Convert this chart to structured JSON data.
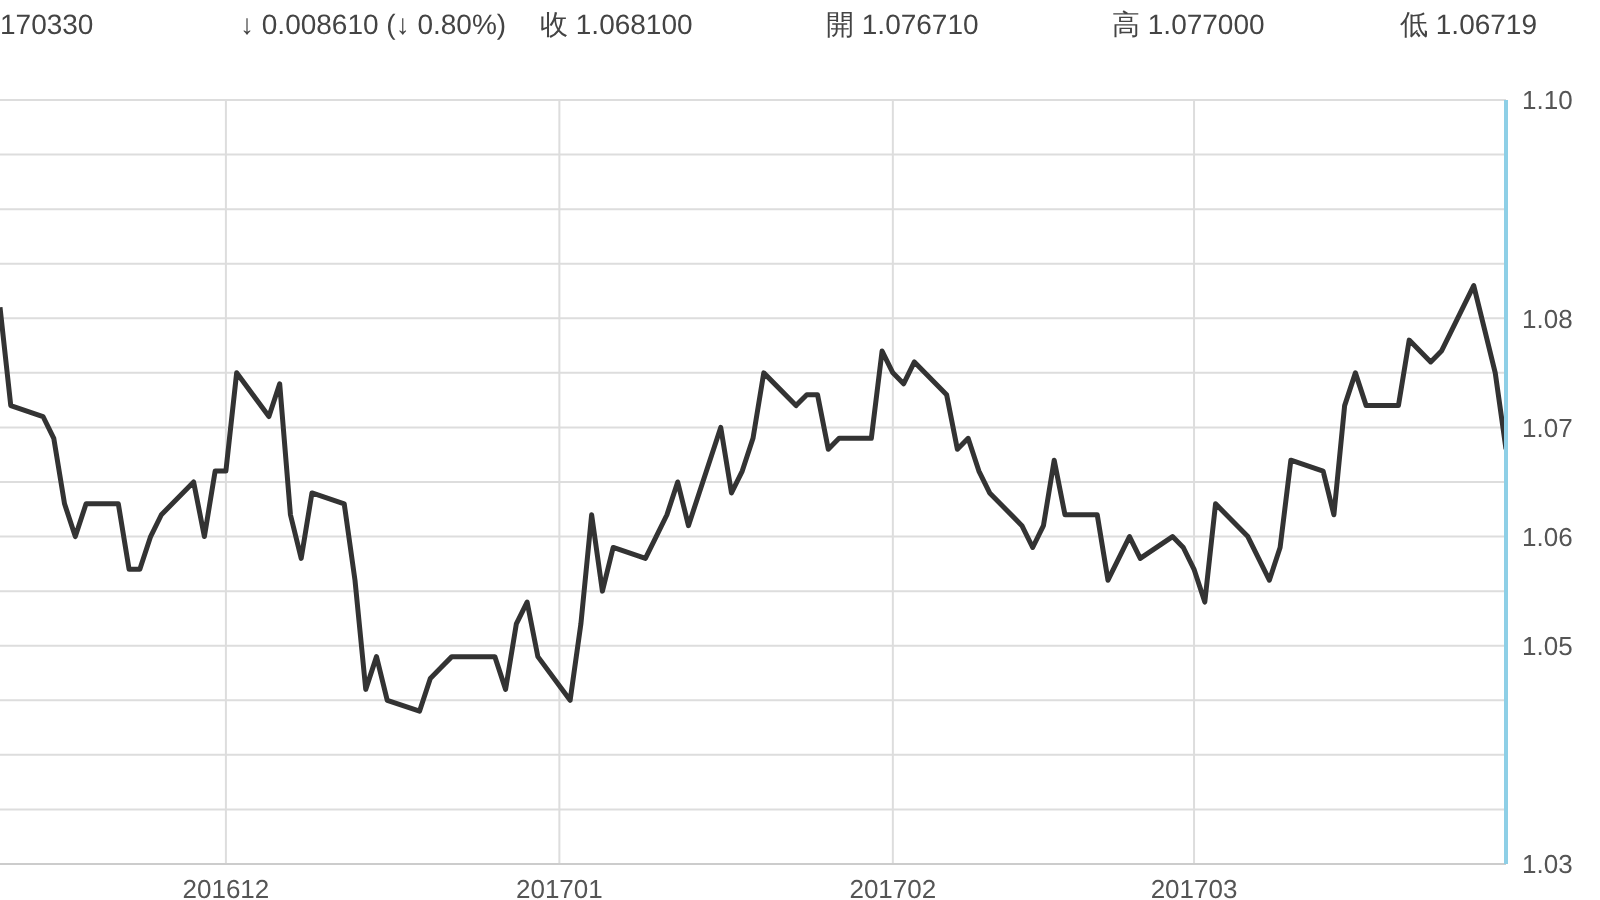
{
  "chart_data": {
    "type": "line",
    "annotations": [
      "170330",
      "↓ 0.008610 (↓ 0.80%)",
      "收 1.068100",
      "開 1.076710",
      "高 1.077000",
      "低 1.06719"
    ],
    "x": [
      "2016-11-10",
      "2016-11-11",
      "2016-11-14",
      "2016-11-15",
      "2016-11-16",
      "2016-11-17",
      "2016-11-18",
      "2016-11-21",
      "2016-11-22",
      "2016-11-23",
      "2016-11-24",
      "2016-11-25",
      "2016-11-28",
      "2016-11-29",
      "2016-11-30",
      "2016-12-01",
      "2016-12-02",
      "2016-12-05",
      "2016-12-06",
      "2016-12-07",
      "2016-12-08",
      "2016-12-09",
      "2016-12-12",
      "2016-12-13",
      "2016-12-14",
      "2016-12-15",
      "2016-12-16",
      "2016-12-19",
      "2016-12-20",
      "2016-12-21",
      "2016-12-22",
      "2016-12-23",
      "2016-12-26",
      "2016-12-27",
      "2016-12-28",
      "2016-12-29",
      "2016-12-30",
      "2017-01-02",
      "2017-01-03",
      "2017-01-04",
      "2017-01-05",
      "2017-01-06",
      "2017-01-09",
      "2017-01-10",
      "2017-01-11",
      "2017-01-12",
      "2017-01-13",
      "2017-01-16",
      "2017-01-17",
      "2017-01-18",
      "2017-01-19",
      "2017-01-20",
      "2017-01-23",
      "2017-01-24",
      "2017-01-25",
      "2017-01-26",
      "2017-01-27",
      "2017-01-30",
      "2017-01-31",
      "2017-02-01",
      "2017-02-02",
      "2017-02-03",
      "2017-02-06",
      "2017-02-07",
      "2017-02-08",
      "2017-02-09",
      "2017-02-10",
      "2017-02-13",
      "2017-02-14",
      "2017-02-15",
      "2017-02-16",
      "2017-02-17",
      "2017-02-20",
      "2017-02-21",
      "2017-02-22",
      "2017-02-23",
      "2017-02-24",
      "2017-02-27",
      "2017-02-28",
      "2017-03-01",
      "2017-03-02",
      "2017-03-03",
      "2017-03-06",
      "2017-03-07",
      "2017-03-08",
      "2017-03-09",
      "2017-03-10",
      "2017-03-13",
      "2017-03-14",
      "2017-03-15",
      "2017-03-16",
      "2017-03-17",
      "2017-03-20",
      "2017-03-21",
      "2017-03-22",
      "2017-03-23",
      "2017-03-24",
      "2017-03-27",
      "2017-03-28",
      "2017-03-29",
      "2017-03-30"
    ],
    "series": [
      {
        "color": "#333333",
        "values": [
          1.081,
          1.072,
          1.071,
          1.069,
          1.063,
          1.06,
          1.063,
          1.063,
          1.057,
          1.057,
          1.06,
          1.062,
          1.065,
          1.06,
          1.066,
          1.066,
          1.075,
          1.071,
          1.074,
          1.062,
          1.058,
          1.064,
          1.063,
          1.056,
          1.046,
          1.049,
          1.045,
          1.044,
          1.047,
          1.048,
          1.049,
          1.049,
          1.049,
          1.046,
          1.052,
          1.054,
          1.049,
          1.045,
          1.052,
          1.062,
          1.055,
          1.059,
          1.058,
          1.06,
          1.062,
          1.065,
          1.061,
          1.07,
          1.064,
          1.066,
          1.069,
          1.075,
          1.072,
          1.073,
          1.073,
          1.068,
          1.069,
          1.069,
          1.077,
          1.075,
          1.074,
          1.076,
          1.073,
          1.068,
          1.069,
          1.066,
          1.064,
          1.061,
          1.059,
          1.061,
          1.067,
          1.062,
          1.062,
          1.056,
          1.058,
          1.06,
          1.058,
          1.06,
          1.059,
          1.057,
          1.054,
          1.063,
          1.06,
          1.058,
          1.056,
          1.059,
          1.067,
          1.066,
          1.062,
          1.072,
          1.075,
          1.072,
          1.072,
          1.078,
          1.077,
          1.076,
          1.077,
          1.083,
          1.079,
          1.075,
          1.068
        ]
      }
    ],
    "xlim": [
      "2016-11-10",
      "2017-03-30"
    ],
    "xticks": [
      {
        "value": "2016-12-01",
        "label": "201612"
      },
      {
        "value": "2017-01-01",
        "label": "201701"
      },
      {
        "value": "2017-02-01",
        "label": "201702"
      },
      {
        "value": "2017-03-01",
        "label": "201703"
      }
    ],
    "ylim": [
      1.03,
      1.1
    ],
    "yticks": [
      1.03,
      {
        "value": 1.035,
        "label": null
      },
      {
        "value": 1.04,
        "label": null
      },
      {
        "value": 1.045,
        "label": null
      },
      1.05,
      {
        "value": 1.055,
        "label": null
      },
      1.06,
      {
        "value": 1.065,
        "label": null
      },
      1.07,
      {
        "value": 1.075,
        "label": null
      },
      1.08,
      {
        "value": 1.085,
        "label": null
      },
      {
        "value": 1.09,
        "label": null
      },
      {
        "value": 1.095,
        "label": null
      },
      {
        "value": 1.1,
        "label": "1.10"
      }
    ],
    "grid": true,
    "legend": false,
    "marker": "none",
    "line_style": "solid"
  }
}
